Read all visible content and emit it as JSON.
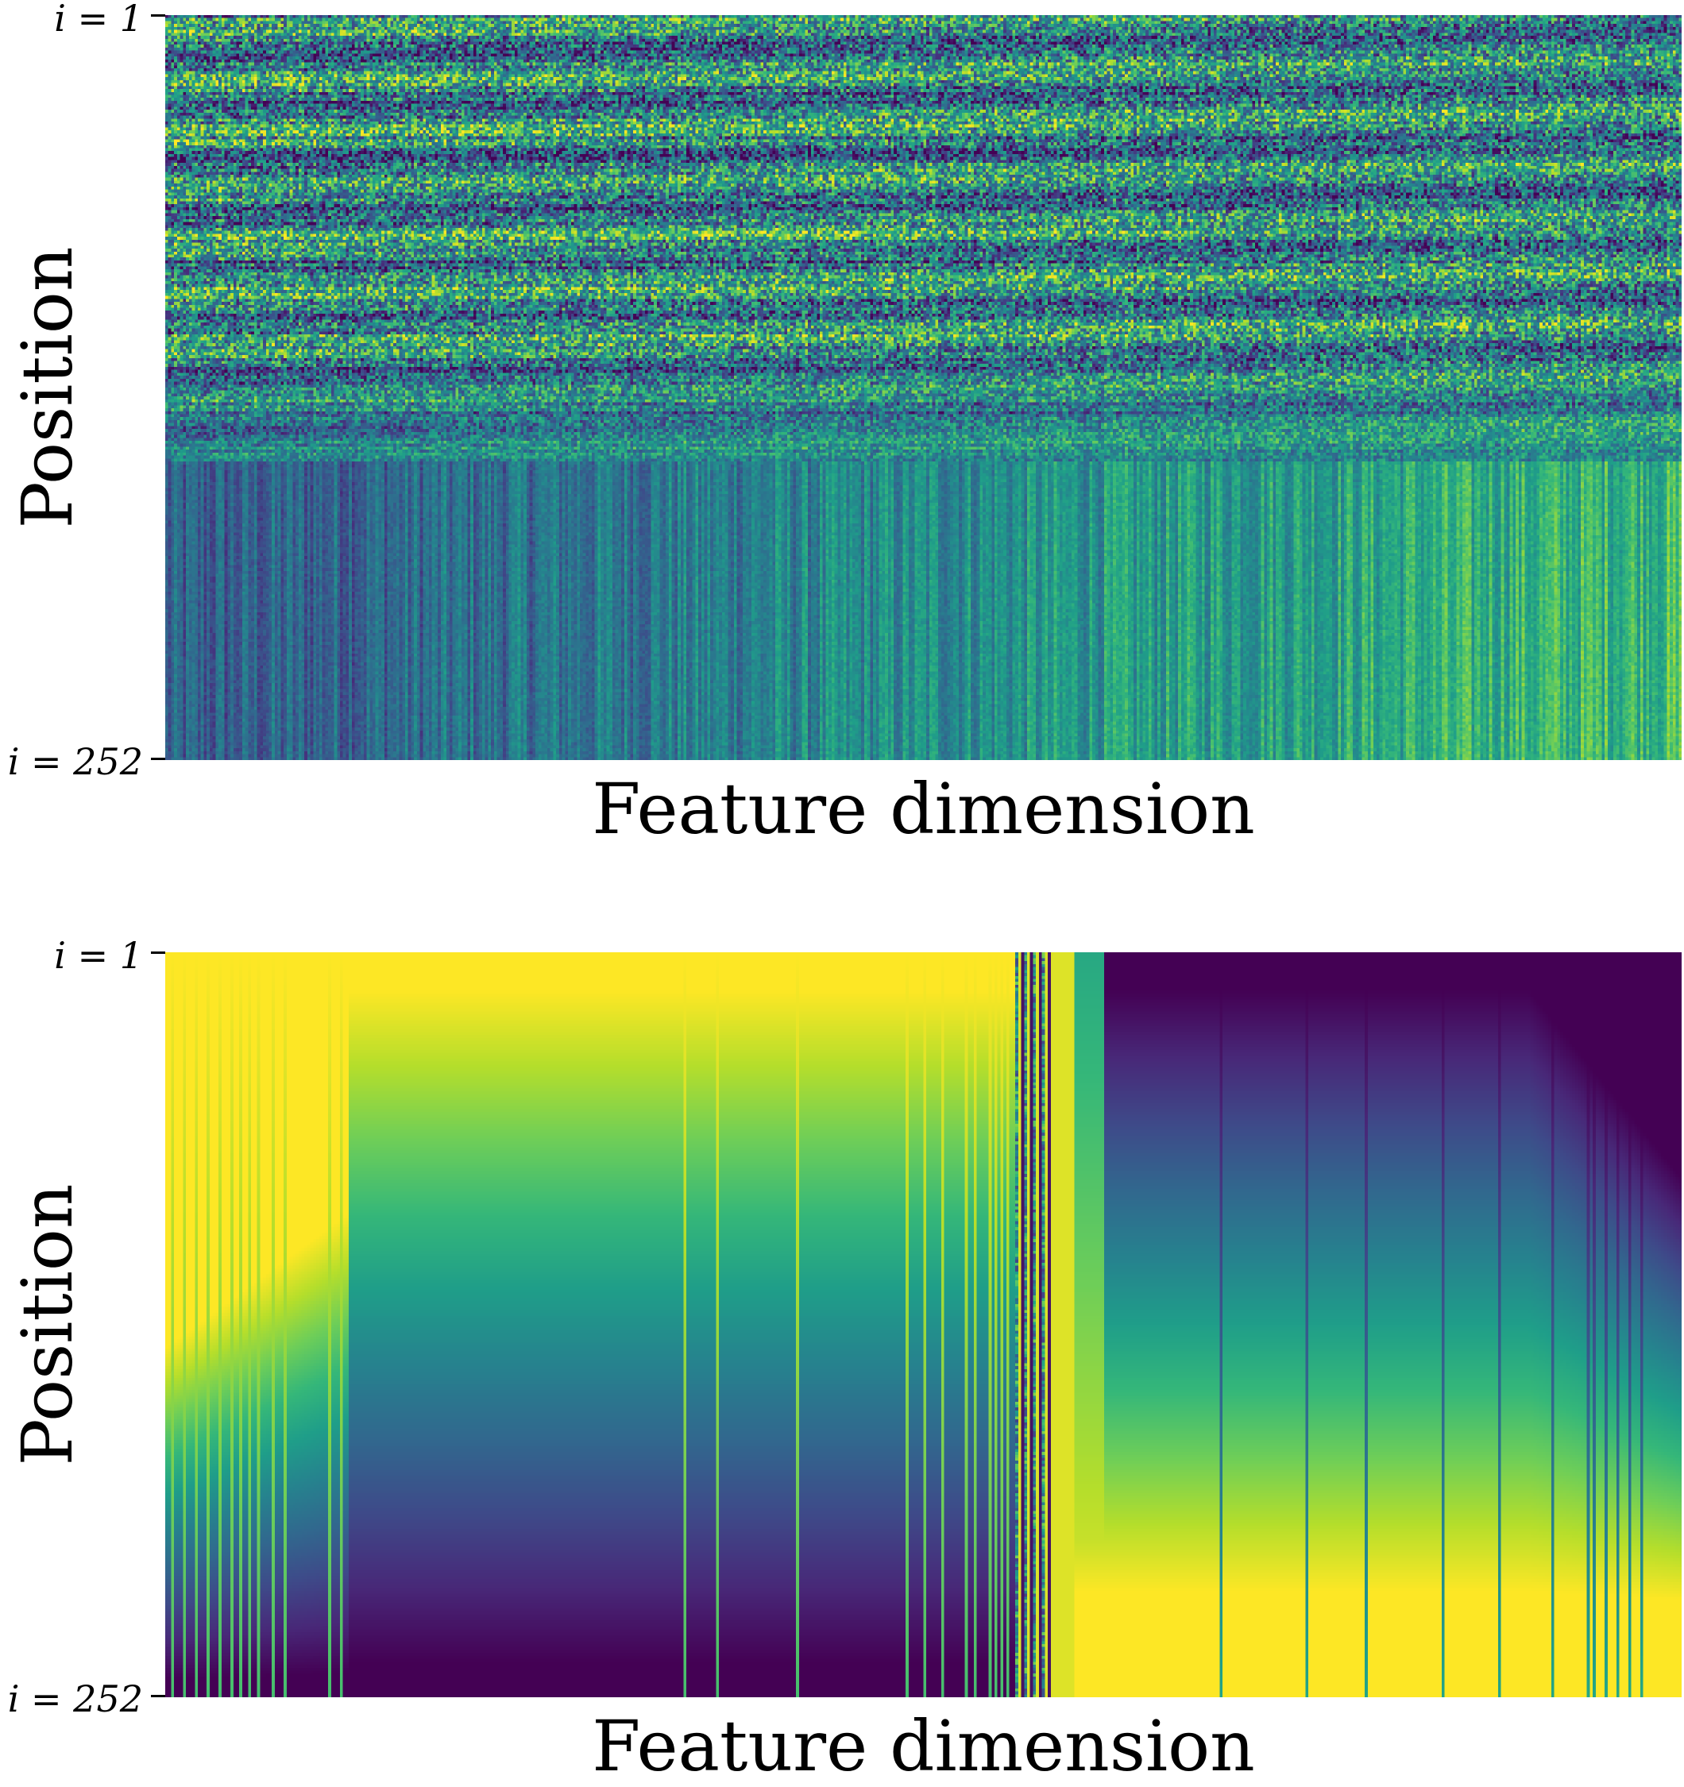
{
  "chart_data": [
    {
      "type": "heatmap",
      "panel": "top",
      "colormap": "viridis",
      "xlabel": "Feature dimension",
      "ylabel": "Position",
      "yticks": [
        "i = 1",
        "i = 252"
      ],
      "rows": 252,
      "description_values": {
        "upper_rows_pattern": "noisy high-contrast bands",
        "lower_rows_pattern": "smooth, increasing to the right"
      }
    },
    {
      "type": "heatmap",
      "panel": "bottom",
      "colormap": "viridis",
      "xlabel": "Feature dimension",
      "ylabel": "Position",
      "yticks": [
        "i = 1",
        "i = 252"
      ],
      "rows": 252,
      "description_values": {
        "left_block": "decreasing with position",
        "right_block": "increasing with position"
      }
    }
  ]
}
